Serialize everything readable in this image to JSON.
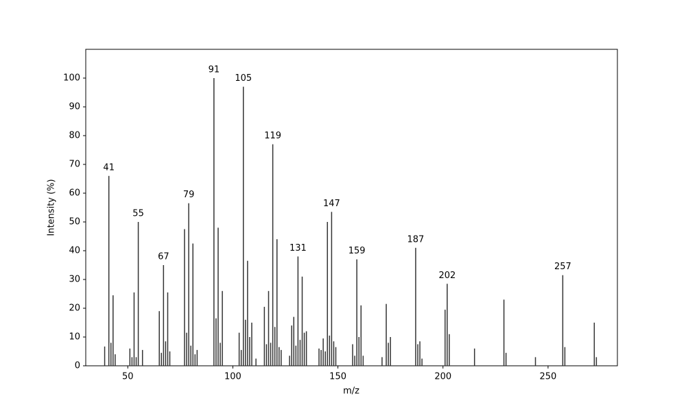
{
  "chart_data": {
    "type": "bar",
    "x_label": "m/z",
    "y_label": "Intensity (%)",
    "x": [
      39,
      41,
      42,
      43,
      44,
      51,
      52,
      53,
      54,
      55,
      57,
      65,
      66,
      67,
      68,
      69,
      70,
      77,
      78,
      79,
      80,
      81,
      82,
      83,
      91,
      92,
      93,
      94,
      95,
      103,
      104,
      105,
      106,
      107,
      108,
      109,
      111,
      115,
      116,
      117,
      118,
      119,
      120,
      121,
      122,
      123,
      127,
      128,
      129,
      130,
      131,
      132,
      133,
      134,
      135,
      141,
      142,
      143,
      144,
      145,
      146,
      147,
      148,
      149,
      157,
      158,
      159,
      160,
      161,
      162,
      171,
      173,
      174,
      175,
      187,
      188,
      189,
      190,
      201,
      202,
      203,
      215,
      229,
      230,
      244,
      257,
      258,
      272,
      273
    ],
    "values": [
      6.7,
      66,
      8,
      24.5,
      4,
      6,
      3,
      25.5,
      3,
      50,
      5.5,
      19,
      4.5,
      35,
      8.5,
      25.5,
      5,
      47.5,
      11.5,
      56.5,
      7,
      42.5,
      4,
      5.5,
      100,
      16.5,
      48,
      8,
      26,
      11.5,
      5.5,
      97,
      16,
      36.5,
      10,
      15,
      2.5,
      20.5,
      7.5,
      26,
      8,
      77,
      13.5,
      44,
      6.5,
      5.5,
      3.5,
      14,
      17,
      7,
      38,
      9,
      31,
      11.5,
      12,
      6,
      5.5,
      9.5,
      5,
      50,
      10.5,
      53.5,
      8.5,
      6.5,
      7.5,
      3.5,
      37,
      10,
      21,
      3.5,
      3,
      21.5,
      8,
      10,
      41,
      7.5,
      8.5,
      2.5,
      19.5,
      28.5,
      11,
      6,
      23,
      4.5,
      3,
      31.5,
      6.5,
      15,
      3
    ],
    "labeled_peaks": [
      41,
      55,
      67,
      79,
      91,
      105,
      119,
      131,
      147,
      159,
      187,
      202,
      257
    ],
    "color": "#333333",
    "xlim": [
      30,
      283
    ],
    "ylim": [
      0,
      110
    ],
    "xticks": [
      50,
      100,
      150,
      200,
      250
    ],
    "yticks": [
      0,
      10,
      20,
      30,
      40,
      50,
      60,
      70,
      80,
      90,
      100
    ],
    "grid": false
  }
}
